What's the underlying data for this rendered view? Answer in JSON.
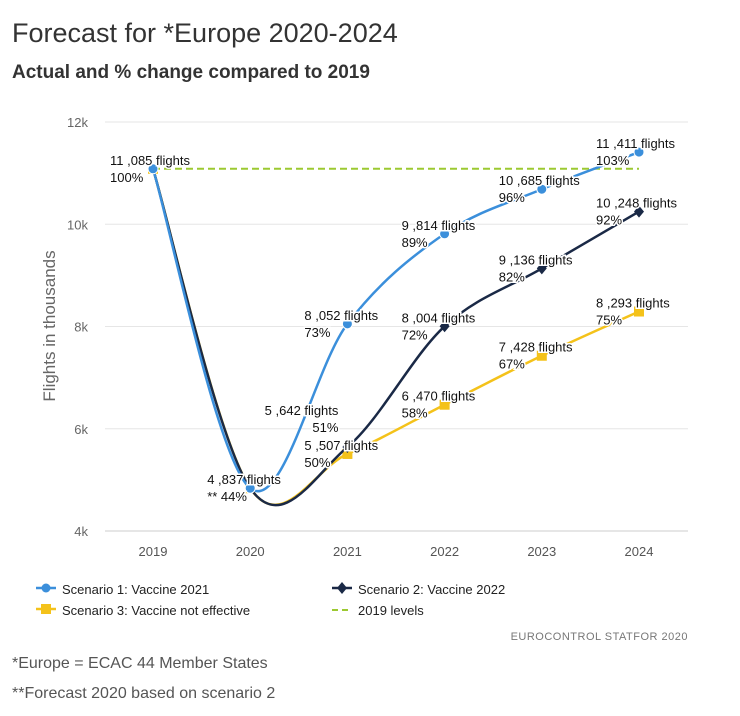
{
  "header": {
    "title": "Forecast for *Europe 2020-2024",
    "subtitle": "Actual and % change compared to 2019"
  },
  "chart_data": {
    "type": "line",
    "ylabel": "Flights in thousands",
    "x": [
      2019,
      2020,
      2021,
      2022,
      2023,
      2024
    ],
    "xticks": [
      "2019",
      "2020",
      "2021",
      "2022",
      "2023",
      "2024"
    ],
    "yticks": [
      "4k",
      "6k",
      "8k",
      "10k",
      "12k"
    ],
    "ylim": [
      4000,
      12000
    ],
    "grid": true,
    "legend_placement": "bottom",
    "series": [
      {
        "name": "Scenario 1: Vaccine 2021",
        "color": "#3b8fdb",
        "marker": "circle",
        "values": [
          11085,
          4837,
          8052,
          9814,
          10685,
          11411
        ],
        "labels": [
          [
            "11 ,085 flights",
            "100%"
          ],
          [
            "4 ,837 flights",
            "** 44%"
          ],
          [
            "8 ,052 flights",
            "73%"
          ],
          [
            "9 ,814 flights",
            "89%"
          ],
          [
            "10 ,685 flights",
            "96%"
          ],
          [
            "11 ,411 flights",
            "103%"
          ]
        ]
      },
      {
        "name": "Scenario 2: Vaccine 2022",
        "color": "#1a2946",
        "marker": "diamond",
        "values": [
          11085,
          4837,
          5642,
          8004,
          9136,
          10248
        ],
        "labels": [
          null,
          null,
          [
            "5 ,642 flights",
            "51%"
          ],
          [
            "8 ,004 flights",
            "72%"
          ],
          [
            "9 ,136 flights",
            "82%"
          ],
          [
            "10 ,248 flights",
            "92%"
          ]
        ]
      },
      {
        "name": "Scenario 3: Vaccine not effective",
        "color": "#f4c21a",
        "marker": "square",
        "values": [
          11085,
          4837,
          5507,
          6470,
          7428,
          8293
        ],
        "labels": [
          null,
          null,
          [
            "5 ,507 flights",
            "50%"
          ],
          [
            "6 ,470 flights",
            "58%"
          ],
          [
            "7 ,428 flights",
            "67%"
          ],
          [
            "8 ,293 flights",
            "75%"
          ]
        ]
      },
      {
        "name": "2019 levels",
        "color": "#9cc931",
        "marker": "dash",
        "values": [
          11085,
          11085,
          11085,
          11085,
          11085,
          11085
        ],
        "labels": []
      }
    ]
  },
  "credit": "EUROCONTROL STATFOR 2020",
  "footnotes": [
    "*Europe = ECAC 44 Member States",
    "**Forecast 2020 based on scenario 2"
  ]
}
